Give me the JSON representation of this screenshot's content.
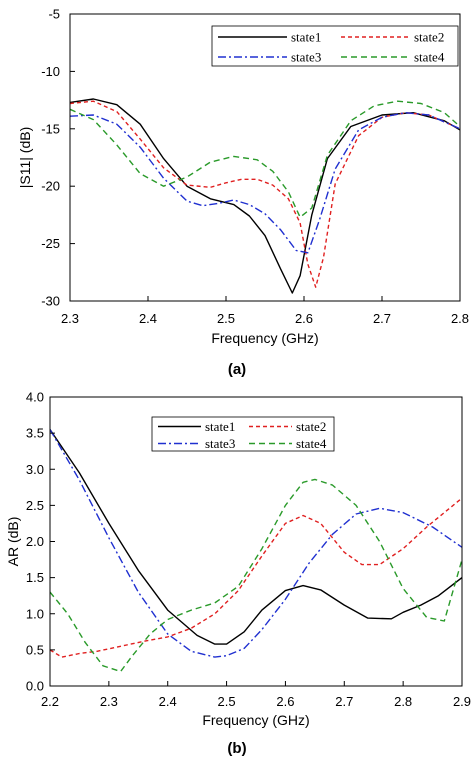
{
  "chart_data": [
    {
      "type": "line",
      "panel_label": "(a)",
      "xlabel": "Frequency (GHz)",
      "ylabel": "|S11| (dB)",
      "xlim": [
        2.3,
        2.8
      ],
      "ylim": [
        -30,
        -5
      ],
      "xticks": [
        2.3,
        2.4,
        2.5,
        2.6,
        2.7,
        2.8
      ],
      "xtick_labels": [
        "2.3",
        "2.4",
        "2.5",
        "2.6",
        "2.7",
        "2.8"
      ],
      "yticks": [
        -30,
        -25,
        -20,
        -15,
        -10,
        -5
      ],
      "ytick_labels": [
        "-30",
        "-25",
        "-20",
        "-15",
        "-10",
        "-5"
      ],
      "grid": false,
      "legend_position": "top-right",
      "series": [
        {
          "name": "state1",
          "color": "#000000",
          "dash": "solid",
          "x": [
            2.3,
            2.33,
            2.36,
            2.39,
            2.42,
            2.45,
            2.48,
            2.51,
            2.53,
            2.55,
            2.57,
            2.585,
            2.595,
            2.61,
            2.63,
            2.66,
            2.7,
            2.74,
            2.78,
            2.8
          ],
          "y": [
            -12.7,
            -12.4,
            -12.9,
            -14.6,
            -17.6,
            -20.0,
            -21.1,
            -21.6,
            -22.6,
            -24.3,
            -27.2,
            -29.3,
            -27.8,
            -22.5,
            -17.6,
            -14.8,
            -13.8,
            -13.6,
            -14.3,
            -15.1
          ]
        },
        {
          "name": "state2",
          "color": "#e02020",
          "dash": "4,3",
          "x": [
            2.3,
            2.33,
            2.36,
            2.39,
            2.42,
            2.45,
            2.48,
            2.5,
            2.52,
            2.54,
            2.56,
            2.58,
            2.595,
            2.605,
            2.615,
            2.625,
            2.64,
            2.67,
            2.7,
            2.73,
            2.76,
            2.8
          ],
          "y": [
            -12.8,
            -12.6,
            -13.5,
            -15.9,
            -18.4,
            -19.9,
            -20.1,
            -19.7,
            -19.4,
            -19.4,
            -19.9,
            -21.1,
            -23.2,
            -26.8,
            -28.8,
            -26.2,
            -19.8,
            -15.6,
            -14.0,
            -13.6,
            -13.8,
            -15.0
          ]
        },
        {
          "name": "state3",
          "color": "#2030d0",
          "dash": "8,3,2,3",
          "x": [
            2.3,
            2.33,
            2.36,
            2.39,
            2.42,
            2.45,
            2.47,
            2.49,
            2.51,
            2.53,
            2.55,
            2.57,
            2.59,
            2.605,
            2.62,
            2.64,
            2.67,
            2.7,
            2.73,
            2.76,
            2.8
          ],
          "y": [
            -13.9,
            -13.8,
            -14.6,
            -16.6,
            -19.3,
            -21.3,
            -21.7,
            -21.5,
            -21.2,
            -21.6,
            -22.4,
            -23.8,
            -25.6,
            -25.8,
            -22.9,
            -18.5,
            -15.1,
            -14.0,
            -13.6,
            -13.8,
            -15.0
          ]
        },
        {
          "name": "state4",
          "color": "#2a9a2a",
          "dash": "6,4",
          "x": [
            2.3,
            2.33,
            2.36,
            2.39,
            2.42,
            2.45,
            2.48,
            2.51,
            2.54,
            2.56,
            2.58,
            2.595,
            2.61,
            2.63,
            2.66,
            2.69,
            2.72,
            2.75,
            2.78,
            2.8
          ],
          "y": [
            -13.3,
            -14.2,
            -16.4,
            -18.9,
            -20.0,
            -19.2,
            -17.9,
            -17.4,
            -17.7,
            -18.7,
            -20.5,
            -22.7,
            -21.9,
            -17.3,
            -14.3,
            -13.0,
            -12.6,
            -12.8,
            -13.6,
            -14.8
          ]
        }
      ]
    },
    {
      "type": "line",
      "panel_label": "(b)",
      "xlabel": "Frequency (GHz)",
      "ylabel": "AR (dB)",
      "xlim": [
        2.2,
        2.9
      ],
      "ylim": [
        0.0,
        4.0
      ],
      "xticks": [
        2.2,
        2.3,
        2.4,
        2.5,
        2.6,
        2.7,
        2.8,
        2.9
      ],
      "xtick_labels": [
        "2.2",
        "2.3",
        "2.4",
        "2.5",
        "2.6",
        "2.7",
        "2.8",
        "2.9"
      ],
      "yticks": [
        0.0,
        0.5,
        1.0,
        1.5,
        2.0,
        2.5,
        3.0,
        3.5,
        4.0
      ],
      "ytick_labels": [
        "0.0",
        "0.5",
        "1.0",
        "1.5",
        "2.0",
        "2.5",
        "3.0",
        "3.5",
        "4.0"
      ],
      "grid": false,
      "legend_position": "top-center",
      "series": [
        {
          "name": "state1",
          "color": "#000000",
          "dash": "solid",
          "x": [
            2.2,
            2.25,
            2.3,
            2.35,
            2.4,
            2.45,
            2.48,
            2.5,
            2.53,
            2.56,
            2.6,
            2.63,
            2.66,
            2.7,
            2.74,
            2.78,
            2.8,
            2.83,
            2.86,
            2.9
          ],
          "y": [
            3.55,
            2.95,
            2.25,
            1.6,
            1.05,
            0.7,
            0.58,
            0.58,
            0.75,
            1.05,
            1.32,
            1.39,
            1.33,
            1.12,
            0.94,
            0.93,
            1.02,
            1.12,
            1.25,
            1.5
          ]
        },
        {
          "name": "state2",
          "color": "#e02020",
          "dash": "4,3",
          "x": [
            2.2,
            2.22,
            2.25,
            2.28,
            2.32,
            2.36,
            2.4,
            2.44,
            2.48,
            2.52,
            2.56,
            2.6,
            2.63,
            2.66,
            2.7,
            2.73,
            2.76,
            2.8,
            2.84,
            2.9
          ],
          "y": [
            0.5,
            0.4,
            0.45,
            0.48,
            0.55,
            0.62,
            0.68,
            0.8,
            1.0,
            1.32,
            1.8,
            2.25,
            2.36,
            2.25,
            1.85,
            1.68,
            1.68,
            1.9,
            2.2,
            2.6
          ]
        },
        {
          "name": "state3",
          "color": "#2030d0",
          "dash": "8,3,2,3",
          "x": [
            2.2,
            2.25,
            2.3,
            2.35,
            2.4,
            2.44,
            2.48,
            2.5,
            2.53,
            2.56,
            2.6,
            2.64,
            2.68,
            2.72,
            2.76,
            2.8,
            2.85,
            2.9
          ],
          "y": [
            3.55,
            2.85,
            2.05,
            1.3,
            0.72,
            0.48,
            0.4,
            0.42,
            0.52,
            0.78,
            1.2,
            1.7,
            2.1,
            2.38,
            2.46,
            2.4,
            2.2,
            1.92
          ]
        },
        {
          "name": "state4",
          "color": "#2a9a2a",
          "dash": "6,4",
          "x": [
            2.2,
            2.23,
            2.26,
            2.29,
            2.32,
            2.34,
            2.37,
            2.4,
            2.44,
            2.48,
            2.52,
            2.56,
            2.6,
            2.63,
            2.65,
            2.68,
            2.72,
            2.76,
            2.8,
            2.84,
            2.87,
            2.9
          ],
          "y": [
            1.3,
            1.0,
            0.6,
            0.28,
            0.2,
            0.42,
            0.72,
            0.92,
            1.05,
            1.15,
            1.38,
            1.9,
            2.5,
            2.82,
            2.86,
            2.78,
            2.5,
            2.0,
            1.35,
            0.95,
            0.9,
            1.75
          ]
        }
      ]
    }
  ]
}
